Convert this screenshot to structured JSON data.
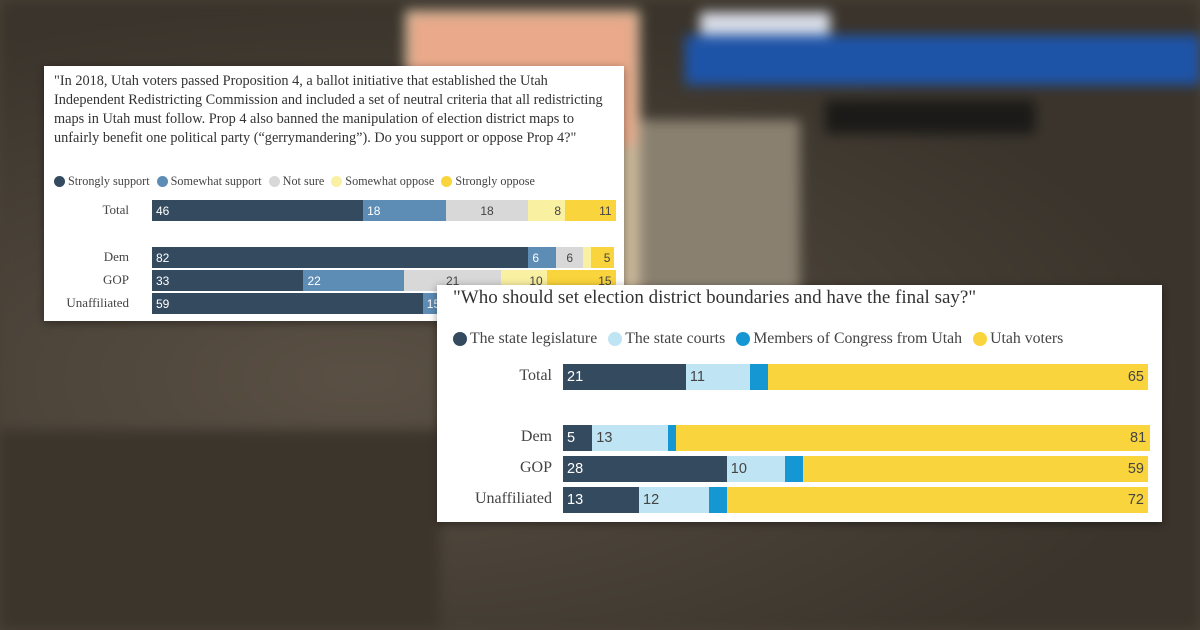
{
  "colors": {
    "dark": "#344a5f",
    "support2": "#5d8cb5",
    "notsure": "#d8d8d8",
    "oppose1": "#faf0a2",
    "yellow": "#f9d43c",
    "lightblue": "#bfe4f3",
    "midblue": "#1597d4"
  },
  "chart_data": [
    {
      "type": "bar",
      "orientation": "horizontal-stacked",
      "title": "\"In 2018, Utah voters passed Proposition 4, a ballot initiative that established the Utah Independent Redistricting Commission and included a set of neutral criteria that all redistricting maps in Utah must follow. Prop 4 also banned the manipulation of election district maps to unfairly benefit one political party (“gerrymandering”). Do you support or oppose Prop 4?\"",
      "categories": [
        "Total",
        "Dem",
        "GOP",
        "Unaffiliated"
      ],
      "series": [
        {
          "name": "Strongly support",
          "color": "#344a5f",
          "label_color": "#ffffff",
          "align": "left",
          "values": [
            46,
            82,
            33,
            59
          ]
        },
        {
          "name": "Somewhat support",
          "color": "#5d8cb5",
          "label_color": "#ffffff",
          "align": "left",
          "values": [
            18,
            6,
            22,
            15
          ]
        },
        {
          "name": "Not sure",
          "color": "#d8d8d8",
          "label_color": "#444444",
          "align": "center",
          "values": [
            18,
            6,
            21,
            null
          ]
        },
        {
          "name": "Somewhat oppose",
          "color": "#faf0a2",
          "label_color": "#444444",
          "align": "right",
          "values": [
            8,
            1,
            10,
            null
          ]
        },
        {
          "name": "Strongly oppose",
          "color": "#f9d43c",
          "label_color": "#444444",
          "align": "right",
          "values": [
            11,
            5,
            15,
            null
          ]
        }
      ],
      "hidden_labels": [
        [
          false,
          false,
          false,
          false,
          false
        ],
        [
          false,
          false,
          false,
          true,
          false
        ],
        [
          false,
          false,
          false,
          false,
          false
        ],
        [
          false,
          false,
          false,
          false,
          false
        ]
      ],
      "xlim": [
        0,
        100
      ],
      "legend": "top-left"
    },
    {
      "type": "bar",
      "orientation": "horizontal-stacked",
      "title": "\"Who should set election district boundaries and have the final say?\"",
      "categories": [
        "Total",
        "Dem",
        "GOP",
        "Unaffiliated"
      ],
      "series": [
        {
          "name": "The state legislature",
          "color": "#344a5f",
          "label_color": "#ffffff",
          "align": "left",
          "values": [
            21,
            5,
            28,
            13
          ]
        },
        {
          "name": "The state courts",
          "color": "#bfe4f3",
          "label_color": "#444444",
          "align": "left",
          "values": [
            11,
            13,
            10,
            12
          ]
        },
        {
          "name": "Members of Congress from Utah",
          "color": "#1597d4",
          "label_color": "#ffffff",
          "align": "left",
          "values": [
            3,
            1,
            3,
            3
          ]
        },
        {
          "name": "Utah voters",
          "color": "#f9d43c",
          "label_color": "#444444",
          "align": "right",
          "values": [
            65,
            81,
            59,
            72
          ]
        }
      ],
      "hidden_labels": [
        [
          false,
          false,
          true,
          false
        ],
        [
          false,
          false,
          true,
          false
        ],
        [
          false,
          false,
          true,
          false
        ],
        [
          false,
          false,
          true,
          false
        ]
      ],
      "xlim": [
        0,
        100
      ],
      "legend": "top-left"
    }
  ]
}
